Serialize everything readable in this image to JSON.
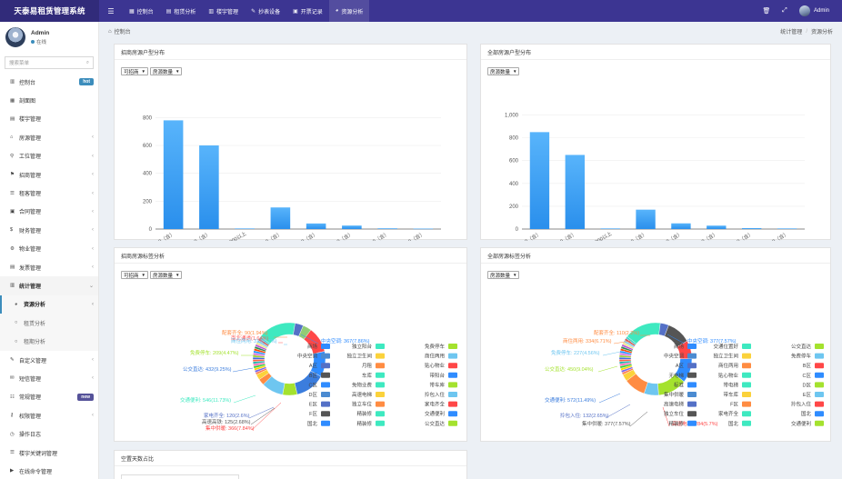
{
  "app": {
    "title": "天泰易租赁管理系统"
  },
  "topnav": {
    "items": [
      {
        "label": "控制台",
        "icon": "dashboard-icon"
      },
      {
        "label": "租赁分析",
        "icon": "chart-icon"
      },
      {
        "label": "楼宇管理",
        "icon": "building-icon"
      },
      {
        "label": "抄表设备",
        "icon": "meter-icon"
      },
      {
        "label": "开票记录",
        "icon": "invoice-icon"
      },
      {
        "label": "资源分析",
        "icon": "pie-icon"
      }
    ],
    "user": "Admin"
  },
  "profile": {
    "name": "Admin",
    "status": "在线"
  },
  "search": {
    "placeholder": "搜索菜单"
  },
  "sidebar": {
    "items": [
      {
        "label": "控制台",
        "badge": "hot"
      },
      {
        "label": "剖面图"
      },
      {
        "label": "楼宇管理"
      },
      {
        "label": "房源管理"
      },
      {
        "label": "工位管理"
      },
      {
        "label": "招商管理"
      },
      {
        "label": "租客管理"
      },
      {
        "label": "合同管理"
      },
      {
        "label": "财务管理"
      },
      {
        "label": "物业管理"
      },
      {
        "label": "发票管理"
      },
      {
        "label": "统计管理"
      }
    ],
    "sub": [
      {
        "label": "资源分析"
      },
      {
        "label": "租赁分析"
      },
      {
        "label": "租期分析"
      }
    ],
    "after": [
      {
        "label": "自定义管理"
      },
      {
        "label": "短信管理"
      },
      {
        "label": "常规管理",
        "badge": "new"
      },
      {
        "label": "权限管理"
      },
      {
        "label": "操作日志"
      },
      {
        "label": "楼宇关键词管理"
      },
      {
        "label": "在线命令管理"
      }
    ]
  },
  "breadcrumb": {
    "left": "控制台",
    "right1": "统计管理",
    "right2": "资源分析"
  },
  "panels": {
    "p1": {
      "title": "招商房源户型分布",
      "sel1": "可招商",
      "sel2": "房源数量"
    },
    "p2": {
      "title": "全部房源户型分布",
      "sel1": "房源数量"
    },
    "p3": {
      "title": "招商房源标签分析",
      "sel1": "可招商",
      "sel2": "房源数量"
    },
    "p4": {
      "title": "全部房源标签分析",
      "sel1": "房源数量"
    },
    "p5": {
      "title": "空置天数占比"
    }
  },
  "chart_data": [
    {
      "type": "bar",
      "categories": [
        "0~100（含）",
        "100~200（含）",
        "1300以上",
        "200~300（含）",
        "300~400（含）",
        "400~500（含）",
        "500~700（含）",
        "700~900（含）"
      ],
      "values": [
        780,
        600,
        4,
        155,
        40,
        25,
        5,
        3
      ],
      "yticks": [
        "0",
        "200",
        "400",
        "600",
        "800"
      ],
      "ylim": [
        0,
        900
      ],
      "color": "#2a8fec"
    },
    {
      "type": "bar",
      "categories": [
        "0~100（含）",
        "100~200（含）",
        "1300以上",
        "200~300（含）",
        "300~400（含）",
        "400~500（含）",
        "500~700（含）",
        "700~900（含）"
      ],
      "values": [
        850,
        650,
        5,
        170,
        50,
        30,
        8,
        5
      ],
      "yticks": [
        "0",
        "200",
        "400",
        "600",
        "800",
        "1,000"
      ],
      "ylim": [
        0,
        1100
      ],
      "color": "#2a8fec"
    },
    {
      "type": "pie",
      "slices": [
        {
          "label": "交通便利",
          "value": 546,
          "color": "#3ee9c0"
        },
        {
          "label": "家电齐全",
          "value": 120,
          "color": "#5470c6"
        },
        {
          "label": "高速高铁",
          "value": 125,
          "color": "#91cc75"
        },
        {
          "label": "集中供暖",
          "value": 366,
          "color": "#ff4747"
        },
        {
          "label": "中央空调",
          "value": 367,
          "color": "#2f8cff"
        },
        {
          "label": "公交直达",
          "value": 432,
          "color": "#3b7ddd"
        },
        {
          "label": "免费停车",
          "value": 209,
          "color": "#a4e22e"
        },
        {
          "label": "商住两用",
          "value": 313,
          "color": "#6ec6f0"
        },
        {
          "label": "配套齐全",
          "value": 90,
          "color": "#ff8c42"
        },
        {
          "label": "南北通透",
          "value": 80,
          "color": "#fbd23b"
        },
        {
          "label": "南北通透",
          "value": 0,
          "color": "#fbd23b"
        }
      ],
      "labels": [
        {
          "text": "配套齐全: 90(1.94%)",
          "color": "#ff8c42"
        },
        {
          "text": "南北通透(1.64%)",
          "color": "#ff5c5c"
        },
        {
          "text": "商住两用: 313(6.7%)",
          "color": "#6ec6f0"
        },
        {
          "text": "免费停车: 209(4.47%)",
          "color": "#a4e22e"
        },
        {
          "text": "公交直达: 432(9.25%)",
          "color": "#3b7ddd"
        },
        {
          "text": "交通便利: 546(11.73%)",
          "color": "#3ee9c0"
        },
        {
          "text": "家电齐全: 120(2.6%)",
          "color": "#5470c6"
        },
        {
          "text": "高速高铁: 125(2.68%)",
          "color": "#555"
        },
        {
          "text": "集中供暖: 366(7.84%)",
          "color": "#ff4747"
        },
        {
          "text": "中央空调: 367(7.86%)",
          "color": "#2f8cff"
        }
      ],
      "legend": [
        "商场",
        "独立阳台",
        "免费停车",
        "中央空调",
        "独立卫生间",
        "商住两用",
        "A区",
        "月租",
        "贴心物业",
        "B区",
        "车库",
        "带阳台",
        "C区",
        "免物业费",
        "带车库",
        "D区",
        "高速电梯",
        "拎包入住",
        "E区",
        "独立车位",
        "家电齐全",
        "F区",
        "精装修",
        "交通便利",
        "国北",
        "精装修",
        "公交直达"
      ]
    },
    {
      "type": "pie",
      "slices": [
        {
          "label": "交通便利",
          "value": 572,
          "color": "#3ee9c0"
        },
        {
          "label": "拎包入住",
          "value": 132,
          "color": "#5470c6"
        },
        {
          "label": "集中供暖",
          "value": 377,
          "color": "#555"
        },
        {
          "label": "高速电梯",
          "value": 284,
          "color": "#ff4747"
        },
        {
          "label": "中央空调",
          "value": 377,
          "color": "#2f8cff"
        },
        {
          "label": "公交直达",
          "value": 450,
          "color": "#a4e22e"
        },
        {
          "label": "免费停车",
          "value": 227,
          "color": "#6ec6f0"
        },
        {
          "label": "商住两用",
          "value": 334,
          "color": "#ff8c42"
        },
        {
          "label": "配套齐全",
          "value": 110,
          "color": "#fbd23b"
        }
      ],
      "labels": [
        {
          "text": "配套齐全: 110(2.2%)",
          "color": "#ff8c42"
        },
        {
          "text": "商住两用: 334(6.71%)",
          "color": "#ff8c42"
        },
        {
          "text": "免费停车: 227(4.56%)",
          "color": "#6ec6f0"
        },
        {
          "text": "公交直达: 450(9.04%)",
          "color": "#a4e22e"
        },
        {
          "text": "交通便利: 572(11.49%)",
          "color": "#3b7ddd"
        },
        {
          "text": "拎包入住: 132(2.65%)",
          "color": "#5470c6"
        },
        {
          "text": "集中供暖: 377(7.57%)",
          "color": "#555"
        },
        {
          "text": "高速电梯: 284(5.7%)",
          "color": "#ff4747"
        },
        {
          "text": "中央空调: 377(7.57%)",
          "color": "#2f8cff"
        }
      ],
      "legend": [
        "商场",
        "交通位置好",
        "公交直达",
        "中央空调",
        "独立卫生间",
        "免费停车",
        "A区",
        "商住两用",
        "B区",
        "无电梯",
        "贴心物业",
        "C区",
        "标准",
        "带电梯",
        "D区",
        "集中供暖",
        "带车库",
        "E区",
        "高速电梯",
        "F区",
        "拎包入住",
        "独立车位",
        "家电齐全",
        "国北",
        "精装修",
        "国北",
        "交通便利"
      ]
    }
  ]
}
